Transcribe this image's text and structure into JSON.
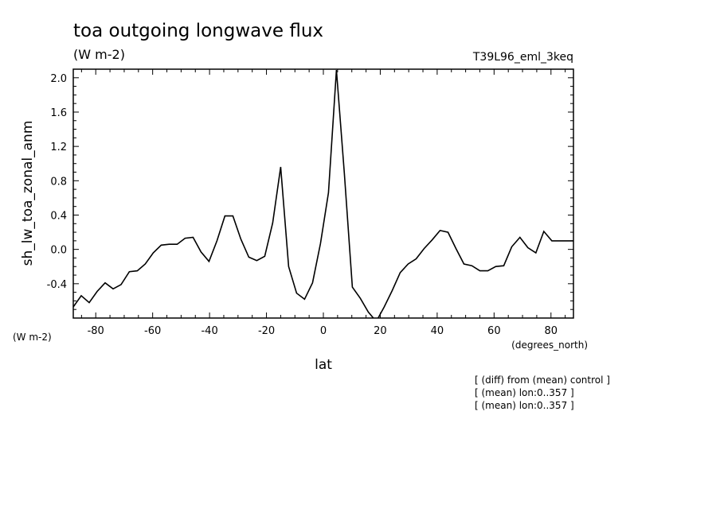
{
  "header": {
    "title": "toa outgoing longwave flux",
    "units": "(W m-2)",
    "run_id": "T39L96_eml_3keq"
  },
  "footer": {
    "y_units": "(W m-2)",
    "x_units": "(degrees_north)",
    "notes": [
      "[ (diff) from (mean) control ]",
      "[ (mean) lon:0..357 ]",
      "[ (mean) lon:0..357 ]"
    ]
  },
  "chart_data": {
    "type": "line",
    "title": "toa outgoing longwave flux",
    "xlabel": "lat",
    "ylabel": "sh_lw_toa_zonal_anm",
    "xlim": [
      -87.9,
      87.9
    ],
    "ylim": [
      -0.8,
      2.1
    ],
    "x_ticks": [
      -80,
      -60,
      -40,
      -20,
      0,
      20,
      40,
      60,
      80
    ],
    "x_tick_labels": [
      "-80",
      "-60",
      "-40",
      "-20",
      "0",
      "20",
      "40",
      "60",
      "80"
    ],
    "y_ticks": [
      -0.4,
      0.0,
      0.4,
      0.8,
      1.2,
      1.6,
      2.0
    ],
    "y_tick_labels": [
      "-0.4",
      "0.0",
      "0.4",
      "0.8",
      "1.2",
      "1.6",
      "2.0"
    ],
    "grid": false,
    "series": [
      {
        "x": [
          -87.9,
          -85.1,
          -82.3,
          -79.5,
          -76.7,
          -73.9,
          -71.1,
          -68.2,
          -65.4,
          -62.6,
          -59.8,
          -57.0,
          -54.2,
          -51.4,
          -48.6,
          -45.8,
          -43.0,
          -40.2,
          -37.4,
          -34.6,
          -31.8,
          -29.0,
          -26.2,
          -23.4,
          -20.6,
          -17.8,
          -15.0,
          -12.2,
          -9.4,
          -6.6,
          -3.8,
          -1.0,
          1.8,
          4.6,
          7.4,
          10.2,
          13.0,
          15.8,
          18.6,
          21.4,
          24.2,
          27.0,
          29.8,
          32.6,
          35.4,
          38.2,
          41.0,
          43.8,
          46.6,
          49.4,
          52.2,
          55.0,
          57.8,
          60.6,
          63.4,
          66.2,
          69.1,
          71.9,
          74.7,
          77.5,
          80.3,
          83.1,
          85.9,
          87.9
        ],
        "values": [
          -0.67,
          -0.54,
          -0.62,
          -0.49,
          -0.39,
          -0.46,
          -0.41,
          -0.26,
          -0.25,
          -0.17,
          -0.04,
          0.05,
          0.06,
          0.06,
          0.13,
          0.14,
          -0.03,
          -0.14,
          0.1,
          0.39,
          0.39,
          0.12,
          -0.09,
          -0.13,
          -0.08,
          0.31,
          0.96,
          -0.2,
          -0.51,
          -0.58,
          -0.39,
          0.07,
          0.66,
          2.09,
          0.88,
          -0.44,
          -0.57,
          -0.73,
          -0.84,
          -0.67,
          -0.48,
          -0.27,
          -0.17,
          -0.11,
          0.01,
          0.11,
          0.22,
          0.2,
          0.01,
          -0.17,
          -0.19,
          -0.25,
          -0.25,
          -0.2,
          -0.19,
          0.03,
          0.14,
          0.02,
          -0.04,
          0.21,
          0.1,
          0.1,
          0.1,
          0.1
        ]
      }
    ]
  }
}
